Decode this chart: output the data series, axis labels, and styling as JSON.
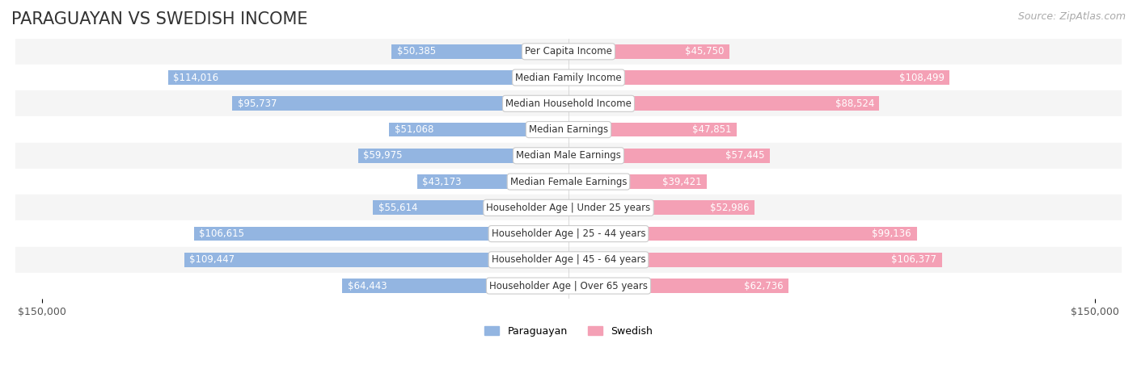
{
  "title": "PARAGUAYAN VS SWEDISH INCOME",
  "source": "Source: ZipAtlas.com",
  "categories": [
    "Per Capita Income",
    "Median Family Income",
    "Median Household Income",
    "Median Earnings",
    "Median Male Earnings",
    "Median Female Earnings",
    "Householder Age | Under 25 years",
    "Householder Age | 25 - 44 years",
    "Householder Age | 45 - 64 years",
    "Householder Age | Over 65 years"
  ],
  "paraguayan": [
    50385,
    114016,
    95737,
    51068,
    59975,
    43173,
    55614,
    106615,
    109447,
    64443
  ],
  "swedish": [
    45750,
    108499,
    88524,
    47851,
    57445,
    39421,
    52986,
    99136,
    106377,
    62736
  ],
  "max_val": 150000,
  "bar_height": 0.55,
  "paraguayan_color": "#93b5e1",
  "paraguayan_color_dark": "#6699cc",
  "swedish_color": "#f4a0b5",
  "swedish_color_dark": "#ee82a0",
  "bg_row_even": "#f5f5f5",
  "bg_row_odd": "#ffffff",
  "label_bg": "#ffffff",
  "title_fontsize": 15,
  "source_fontsize": 9,
  "tick_fontsize": 9,
  "value_fontsize": 8.5,
  "cat_fontsize": 8.5
}
